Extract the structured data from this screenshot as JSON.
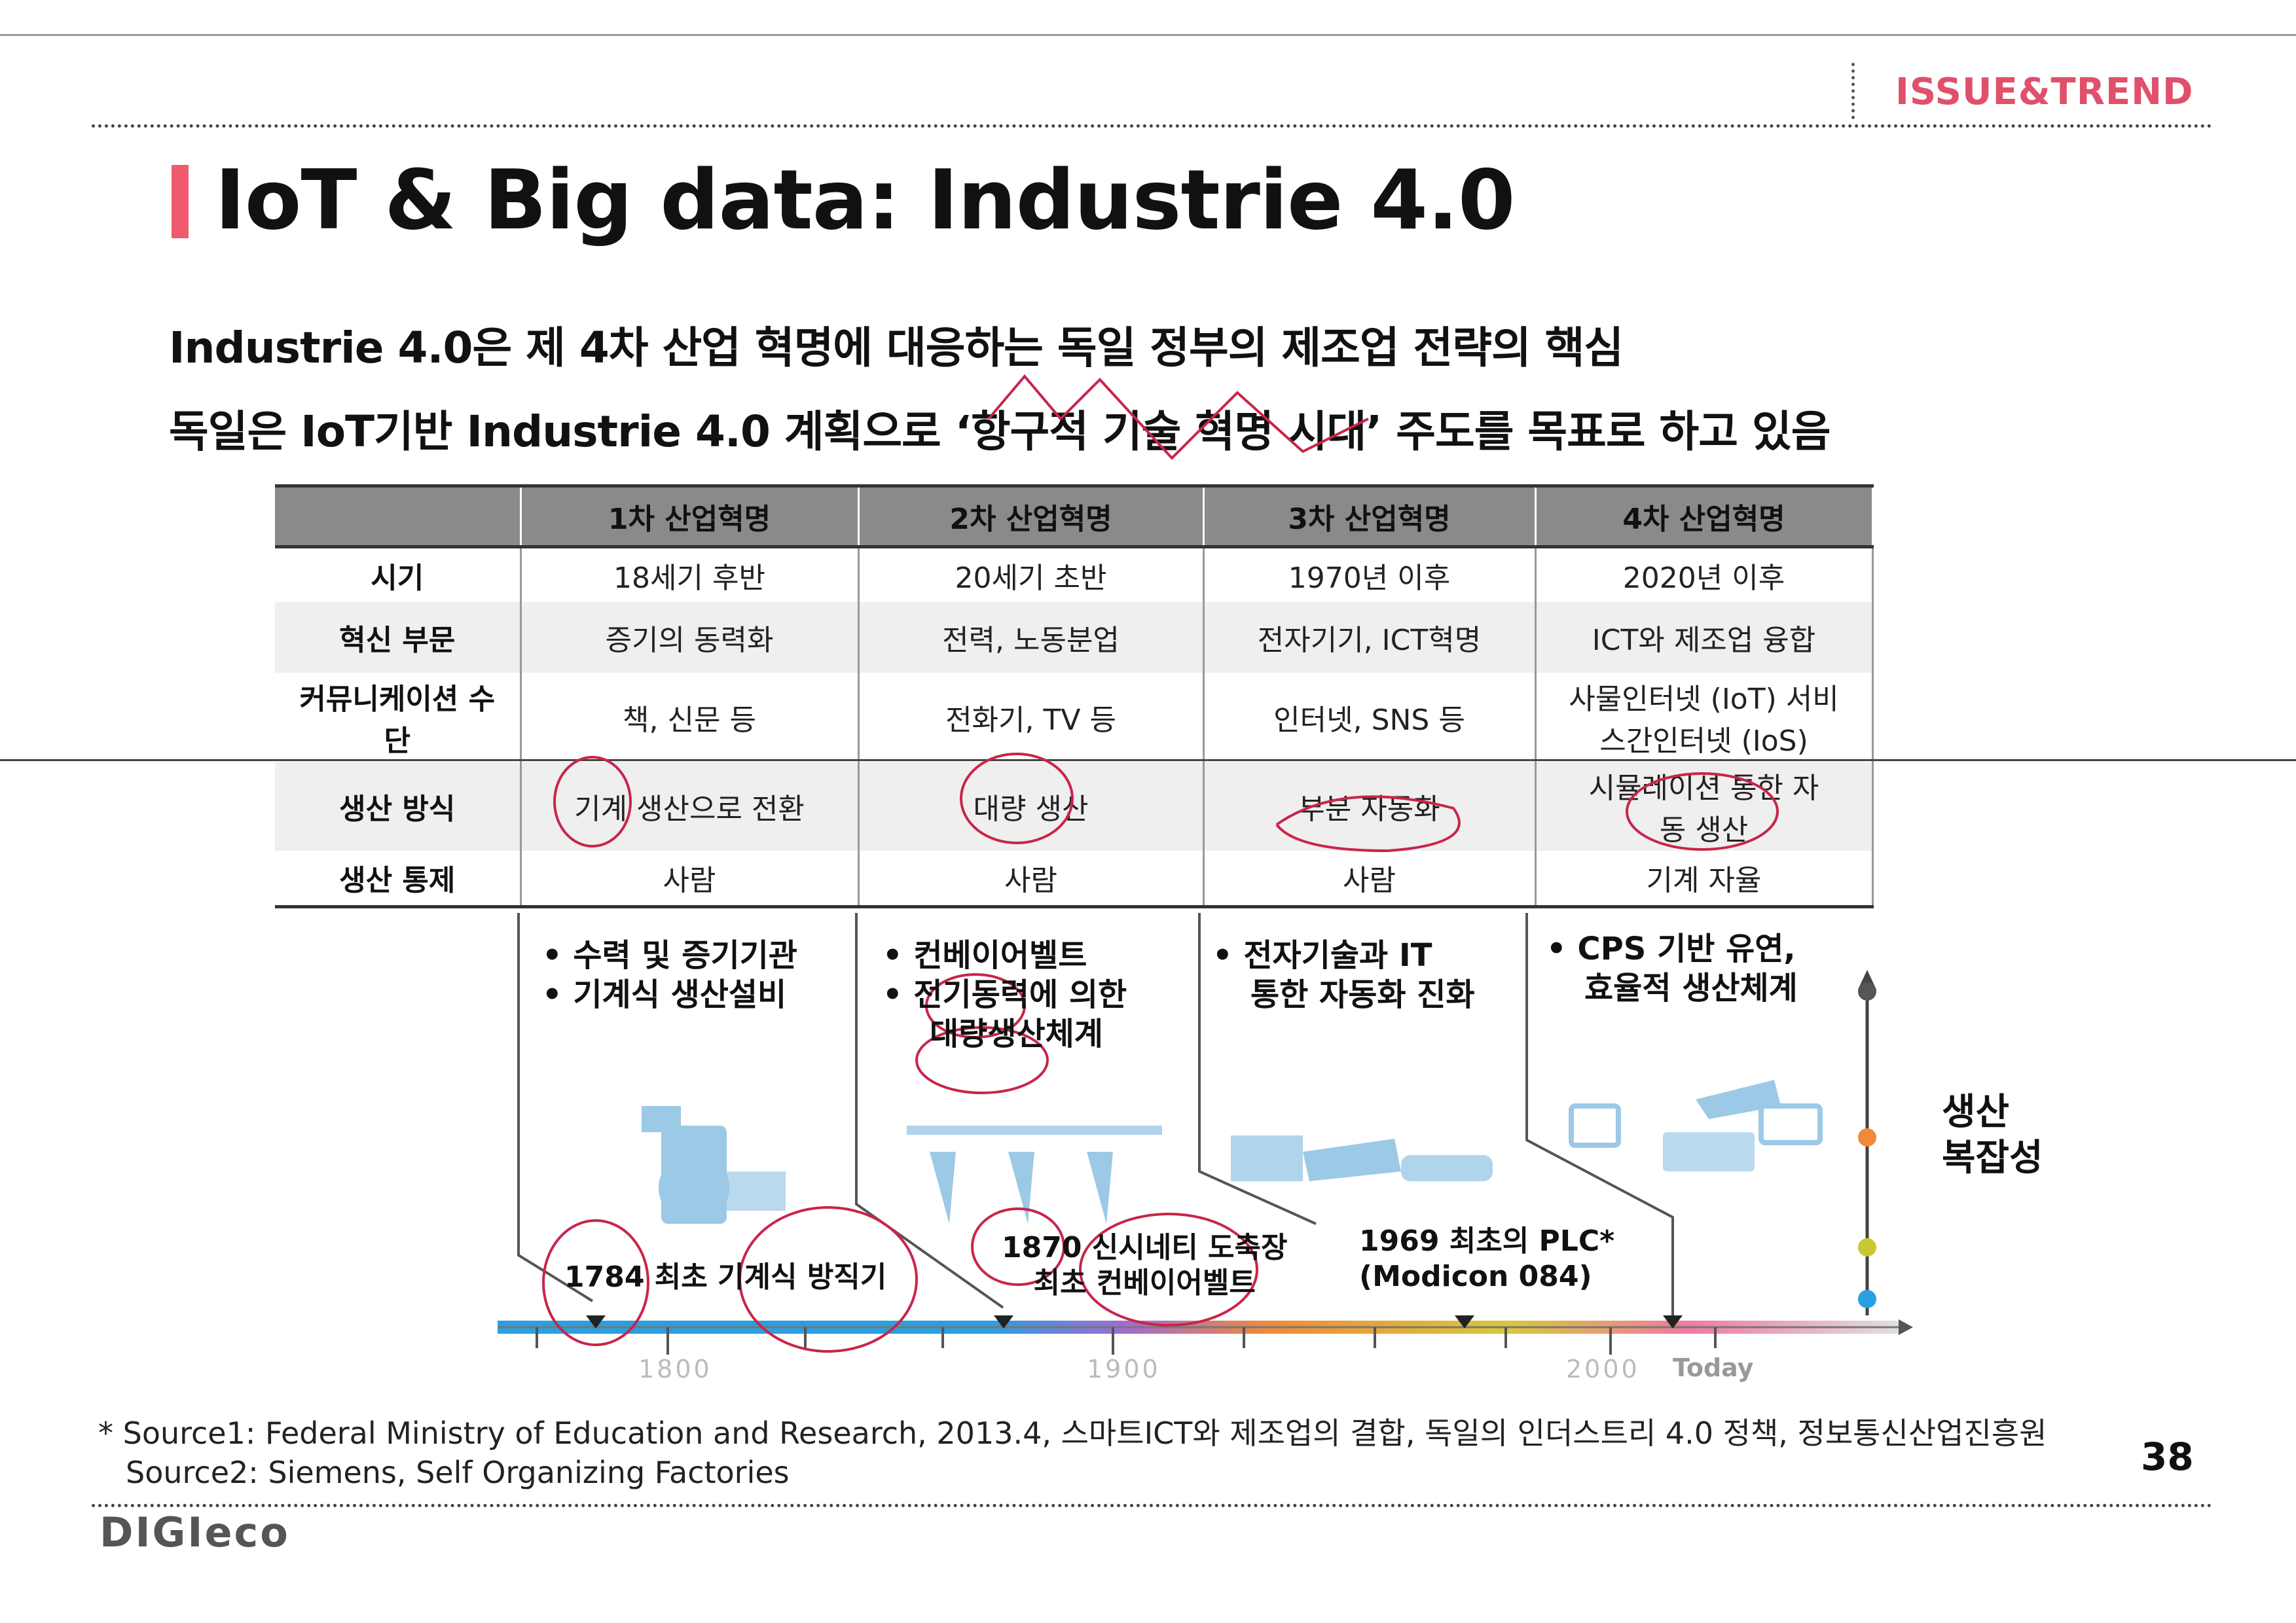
{
  "header": {
    "tag": "ISSUE&TREND"
  },
  "title": "IoT & Big data: Industrie 4.0",
  "subtitle": {
    "line1": "Industrie 4.0은 제 4차 산업 혁명에 대응하는 독일 정부의 제조업 전략의 핵심",
    "line2": "독일은 IoT기반 Industrie 4.0 계획으로 ‘항구적 기술 혁명 시대’ 주도를 목표로 하고 있음"
  },
  "table": {
    "headers": [
      "",
      "1차 산업혁명",
      "2차 산업혁명",
      "3차 산업혁명",
      "4차 산업혁명"
    ],
    "rows": [
      {
        "label": "시기",
        "cells": [
          "18세기 후반",
          "20세기 초반",
          "1970년 이후",
          "2020년 이후"
        ]
      },
      {
        "label": "혁신 부문",
        "cells": [
          "증기의 동력화",
          "전력, 노동분업",
          "전자기기, ICT혁명",
          "ICT와 제조업 융합"
        ]
      },
      {
        "label": "커뮤니케이션 수단",
        "cells": [
          "책, 신문 등",
          "전화기, TV 등",
          "인터넷, SNS 등",
          "사물인터넷 (IoT) 서비스간인터넷 (IoS)"
        ]
      },
      {
        "label": "생산 방식",
        "cells": [
          "기계 생산으로 전환",
          "대량 생산",
          "부분 자동화",
          "시뮬레이션 통한 자동 생산"
        ]
      },
      {
        "label": "생산 통제",
        "cells": [
          "사람",
          "사람",
          "사람",
          "기계 자율"
        ]
      }
    ]
  },
  "timeline": {
    "bullets": [
      [
        "수력 및 증기기관",
        "기계식 생산설비"
      ],
      [
        "컨베이어벨트",
        "전기동력에 의한",
        "대량생산체계"
      ],
      [
        "전자기술과 IT",
        "통한 자동화 진화"
      ],
      [
        "CPS 기반 유연,",
        "효율적 생산체계"
      ]
    ],
    "milestones": [
      {
        "line1": "1784 최초 기계식 방직기",
        "line2": ""
      },
      {
        "line1": "1870 신시네티 도축장",
        "line2": "최초 컨베이어벨트"
      },
      {
        "line1": "1969 최초의 PLC*",
        "line2": "(Modicon 084)"
      }
    ],
    "years": [
      "1800",
      "1900",
      "2000"
    ],
    "today": "Today",
    "axis_label": {
      "line1": "생산",
      "line2": "복잡성"
    },
    "dot_colors": [
      "#555555",
      "#f08a3a",
      "#c8c830",
      "#2aa0e0"
    ]
  },
  "footer": {
    "source1": "* Source1: Federal Ministry of Education and Research, 2013.4, 스마트ICT와 제조업의 결합, 독일의 인더스트리 4.0 정책, 정보통신산업진흥원",
    "source2": "Source2: Siemens, Self Organizing Factories",
    "page": "38",
    "logo": "DIGIeco"
  }
}
